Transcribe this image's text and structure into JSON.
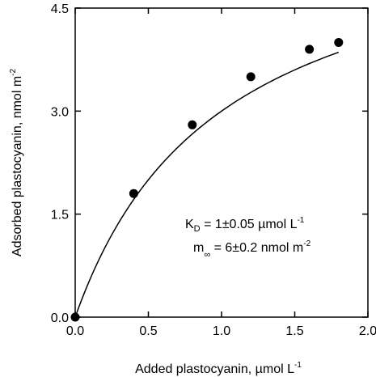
{
  "chart_data": {
    "type": "scatter",
    "title": "",
    "xlabel_main": "Added plastocyanin,  µmol L",
    "xlabel_sup": "-1",
    "ylabel_main": "Adsorbed plastocyanin,  nmol m",
    "ylabel_sup": "-2",
    "xlim": [
      0,
      2.0
    ],
    "ylim": [
      0,
      4.5
    ],
    "x_ticks": [
      0.0,
      0.5,
      1.0,
      1.5,
      2.0
    ],
    "x_tick_labels": [
      "0.0",
      "0.5",
      "1.0",
      "1.5",
      "2.0"
    ],
    "y_ticks": [
      0.0,
      1.5,
      3.0,
      4.5
    ],
    "y_tick_labels": [
      "0.0",
      "1.5",
      "3.0",
      "4.5"
    ],
    "grid": false,
    "series": [
      {
        "marker": "filled-circle",
        "x": [
          0.0,
          0.4,
          0.8,
          1.2,
          1.6,
          1.8
        ],
        "y": [
          0.0,
          1.8,
          2.8,
          3.5,
          3.9,
          4.0
        ]
      }
    ],
    "fit_curve": {
      "style": "solid-line",
      "model": "langmuir",
      "m_inf": 6,
      "K_D": 1,
      "x_range": [
        0,
        1.8
      ]
    },
    "annotations": {
      "kd_main": "K",
      "kd_sub": "D",
      "kd_value": " = 1±0.05 µmol L",
      "kd_sup": "-1",
      "m_main": "m",
      "m_sub": "∞",
      "m_value": " = 6±0.2 nmol m",
      "m_sup": "-2"
    },
    "colors": {
      "axis": "#000000",
      "marker": "#000000",
      "line": "#000000"
    }
  }
}
